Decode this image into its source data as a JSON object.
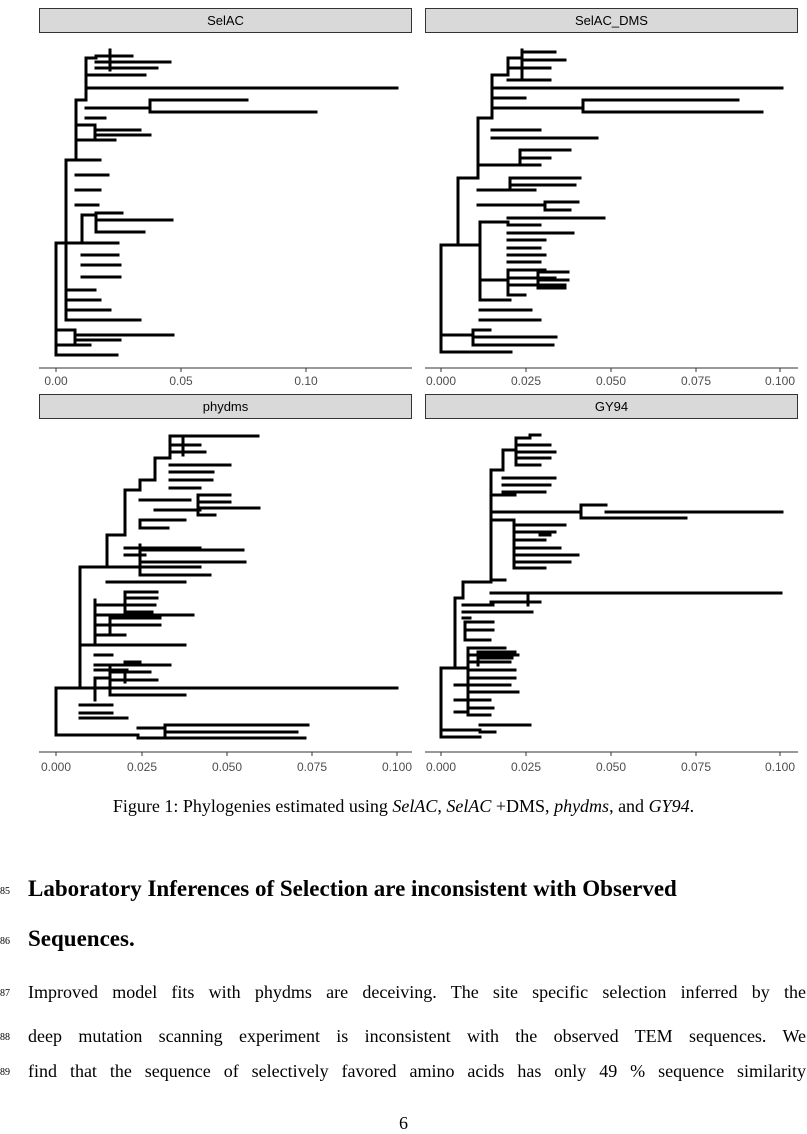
{
  "figure": {
    "caption": {
      "prefix": "Figure 1: Phylogenies estimated using ",
      "m1": "SelAC",
      "sep1": ", ",
      "m2": "SelAC",
      "sep2": " +DMS, ",
      "m3": "phydms",
      "sep3": ", and ",
      "m4": "GY94",
      "suffix": "."
    },
    "panels": [
      {
        "label": "SelAC",
        "ticks": [
          "0.00",
          "0.05",
          "0.10"
        ]
      },
      {
        "label": "SelAC_DMS",
        "ticks": [
          "0.000",
          "0.025",
          "0.050",
          "0.075",
          "0.100"
        ]
      },
      {
        "label": "phydms",
        "ticks": [
          "0.000",
          "0.025",
          "0.050",
          "0.075",
          "0.100"
        ]
      },
      {
        "label": "GY94",
        "ticks": [
          "0.000",
          "0.025",
          "0.050",
          "0.075",
          "0.100"
        ]
      }
    ]
  },
  "section": {
    "heading_line1": "Laboratory Inferences of Selection are inconsistent with Observed",
    "heading_line2": "Sequences.",
    "heading_line_numbers": [
      "85",
      "86"
    ],
    "body_lines": [
      "Improved model fits with phydms are deceiving. The site specific selection inferred by the",
      "deep mutation scanning experiment is inconsistent with the observed TEM sequences. We",
      "find that the sequence of selectively favored amino acids has only 49 % sequence similarity"
    ],
    "body_line_numbers": [
      "87",
      "88",
      "89"
    ]
  },
  "page_number": "6"
}
